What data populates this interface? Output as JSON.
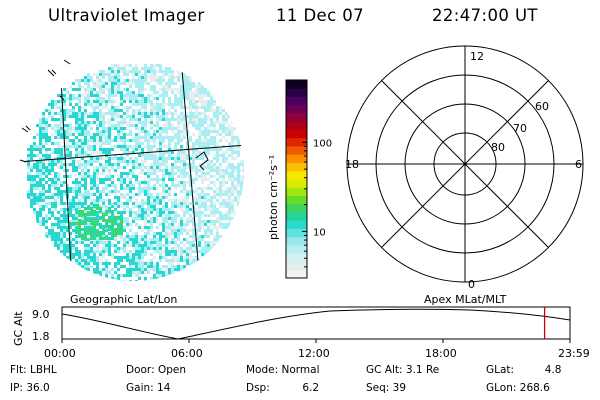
{
  "header": {
    "instrument": "Ultraviolet Imager",
    "date": "11 Dec 07",
    "time": "22:47:00 UT"
  },
  "colorbar": {
    "unit_label": "photon cm⁻²s⁻¹",
    "ticks": [
      "100",
      "10"
    ],
    "tick_values": [
      100,
      10
    ],
    "range": [
      3,
      500
    ],
    "scale": "log",
    "colors": [
      "#f2f2f2",
      "#e4eded",
      "#d4f0f0",
      "#b8eef0",
      "#9ae8ee",
      "#5ee2e2",
      "#28dccc",
      "#24d49a",
      "#3cd45c",
      "#64dc28",
      "#a0e410",
      "#d8ec00",
      "#f8e800",
      "#f8c000",
      "#f89000",
      "#f05a00",
      "#e02800",
      "#cc0000",
      "#b0001a",
      "#90003a",
      "#6e0050",
      "#4c0060",
      "#2a0048",
      "#100020"
    ]
  },
  "left_panel": {
    "label": "Geographic Lat/Lon",
    "fill_colors": [
      "#28d8d0",
      "#a8eef2",
      "#e8eeee"
    ]
  },
  "right_panel": {
    "label": "Apex MLat/MLT",
    "mlt_labels": {
      "top": "12",
      "bottom": "0",
      "left": "18",
      "right": "6"
    },
    "lat_labels": [
      "60",
      "70",
      "80"
    ]
  },
  "timeline": {
    "ylabel": "GC Alt",
    "yticks": [
      "9.0",
      "1.8"
    ],
    "xticks": [
      "00:00",
      "06:00",
      "12:00",
      "18:00",
      "23:59"
    ],
    "current_time_marker": "22:47",
    "marker_color": "#cc0000"
  },
  "status": {
    "row1": [
      {
        "label": "Flt:",
        "value": "LBHL"
      },
      {
        "label": "Door:",
        "value": "Open"
      },
      {
        "label": "Mode:",
        "value": "Normal"
      },
      {
        "label": "GC Alt:",
        "value": "3.1 Re"
      },
      {
        "label": "GLat:",
        "value": "4.8"
      }
    ],
    "row2": [
      {
        "label": "IP:",
        "value": "36.0"
      },
      {
        "label": "Gain:",
        "value": "14"
      },
      {
        "label": "Dsp:",
        "value": "6.2"
      },
      {
        "label": "Seq:",
        "value": "39"
      },
      {
        "label": "GLon:",
        "value": "268.6"
      }
    ]
  }
}
